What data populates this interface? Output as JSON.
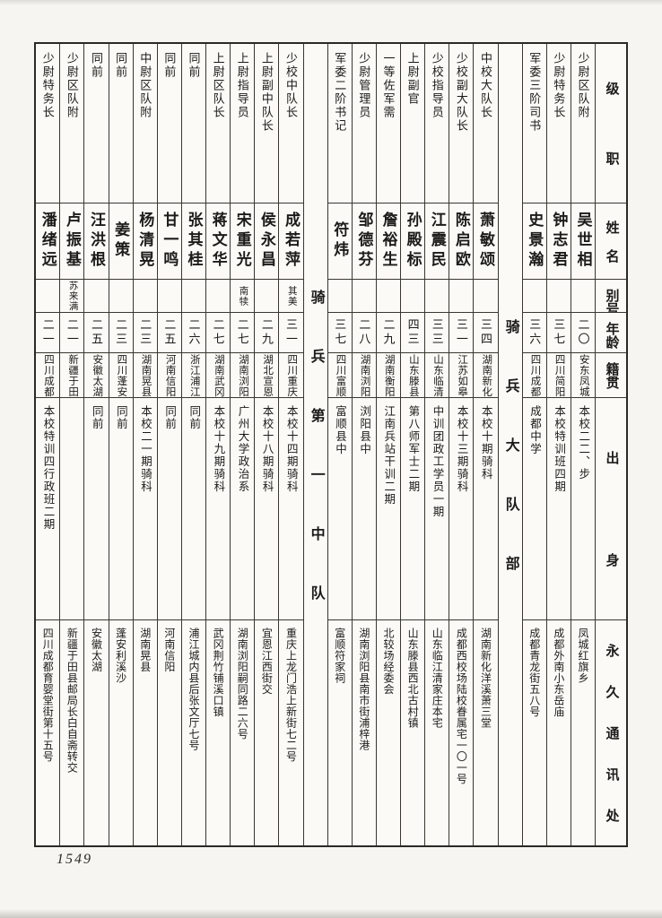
{
  "page": {
    "number": "1549"
  },
  "table": {
    "reading_direction": "right-to-left, vertical text",
    "field_headers": [
      "级职",
      "姓名",
      "别号",
      "年龄",
      "籍贯",
      "出身",
      "永久通讯处"
    ],
    "entries": [
      {
        "type": "entry",
        "rank": "少尉区队附",
        "name": "吴世相",
        "alias": "",
        "age": "二〇",
        "native_place": "安东凤城",
        "origin": "本校二二、步",
        "address": "凤城红旗乡"
      },
      {
        "type": "entry",
        "rank": "少尉特务长",
        "name": "钟志君",
        "alias": "",
        "age": "三七",
        "native_place": "四川简阳",
        "origin": "本校特训班四期",
        "address": "成都外南小东岳庙"
      },
      {
        "type": "entry",
        "rank": "军委三阶司书",
        "name": "史景瀚",
        "alias": "",
        "age": "三六",
        "native_place": "四川成都",
        "origin": "成都中学",
        "address": "成都青龙街五八号"
      },
      {
        "type": "section",
        "title": "骑兵大队部"
      },
      {
        "type": "entry",
        "rank": "中校大队长",
        "name": "萧敏颂",
        "alias": "",
        "age": "三四",
        "native_place": "湖南新化",
        "origin": "本校十期骑科",
        "address": "湖南新化洋溪萧三堂"
      },
      {
        "type": "entry",
        "rank": "少校副大队长",
        "name": "陈启欧",
        "alias": "",
        "age": "三一",
        "native_place": "江苏如皋",
        "origin": "本校十三期骑科",
        "address": "成都西校场陆校眷属宅一〇一号"
      },
      {
        "type": "entry",
        "rank": "少校指导员",
        "name": "江震民",
        "alias": "",
        "age": "三三",
        "native_place": "山东临清",
        "origin": "中训团政工学员一期",
        "address": "山东临江清家庄本宅"
      },
      {
        "type": "entry",
        "rank": "上尉副官",
        "name": "孙殿标",
        "alias": "",
        "age": "四三",
        "native_place": "山东滕县",
        "origin": "第八师军士二期",
        "address": "山东滕县西北古村镇"
      },
      {
        "type": "entry",
        "rank": "一等佐军需",
        "name": "詹裕生",
        "alias": "",
        "age": "二九",
        "native_place": "湖南衡阳",
        "origin": "江南兵站干训二期",
        "address": "北较场经委会"
      },
      {
        "type": "entry",
        "rank": "少尉管理员",
        "name": "邹德芬",
        "alias": "",
        "age": "二八",
        "native_place": "湖南浏阳",
        "origin": "浏阳县中",
        "address": "湖南浏阳县南市街浦梓港"
      },
      {
        "type": "entry",
        "rank": "军委二阶书记",
        "name": "符炜",
        "alias": "",
        "age": "三七",
        "native_place": "四川富顺",
        "origin": "富顺县中",
        "address": "富顺符家祠"
      },
      {
        "type": "section",
        "title": "骑兵第一中队"
      },
      {
        "type": "entry",
        "rank": "少校中队长",
        "name": "成若萍",
        "alias": "其美",
        "age": "三一",
        "native_place": "四川重庆",
        "origin": "本校十四期骑科",
        "address": "重庆上龙门浩上新街七二号"
      },
      {
        "type": "entry",
        "rank": "上尉副中队长",
        "name": "侯永昌",
        "alias": "",
        "age": "二九",
        "native_place": "湖北宣恩",
        "origin": "本校十八期骑科",
        "address": "宜恩江西街交"
      },
      {
        "type": "entry",
        "rank": "上尉指导员",
        "name": "宋重光",
        "alias": "南犊",
        "age": "二七",
        "native_place": "湖南浏阳",
        "origin": "广州大学政治系",
        "address": "湖南浏阳嗣同路二六号"
      },
      {
        "type": "entry",
        "rank": "上尉区队长",
        "name": "蒋文华",
        "alias": "",
        "age": "二七",
        "native_place": "湖南武冈",
        "origin": "本校十九期骑科",
        "address": "武冈荆竹铺溪口镇"
      },
      {
        "type": "entry",
        "rank": "同前",
        "name": "张其桂",
        "alias": "",
        "age": "二六",
        "native_place": "浙江浦江",
        "origin": "同前",
        "address": "浦江城内县后张文厅七号"
      },
      {
        "type": "entry",
        "rank": "同前",
        "name": "甘一鸣",
        "alias": "",
        "age": "二五",
        "native_place": "河南信阳",
        "origin": "同前",
        "address": "河南信阳"
      },
      {
        "type": "entry",
        "rank": "中尉区队附",
        "name": "杨清晃",
        "alias": "",
        "age": "二三",
        "native_place": "湖南晃县",
        "origin": "本校二一期骑科",
        "address": "湖南晃县"
      },
      {
        "type": "entry",
        "rank": "同前",
        "name": "姜策",
        "alias": "",
        "age": "二三",
        "native_place": "四川蓬安",
        "origin": "同前",
        "address": "蓬安利溪沙"
      },
      {
        "type": "entry",
        "rank": "同前",
        "name": "汪洪根",
        "alias": "",
        "age": "二五",
        "native_place": "安徽太湖",
        "origin": "同前",
        "address": "安徽太湖"
      },
      {
        "type": "entry",
        "rank": "少尉区队附",
        "name": "卢振基",
        "alias": "苏来满",
        "age": "二一",
        "native_place": "新疆于田",
        "origin": "",
        "address": "新疆于田县邮局长白自斋转交"
      },
      {
        "type": "entry",
        "rank": "少尉特务长",
        "name": "潘绪远",
        "alias": "",
        "age": "二一",
        "native_place": "四川成都",
        "origin": "本校特训四行政班二期",
        "address": "四川成都育婴堂街第十五号"
      }
    ]
  }
}
